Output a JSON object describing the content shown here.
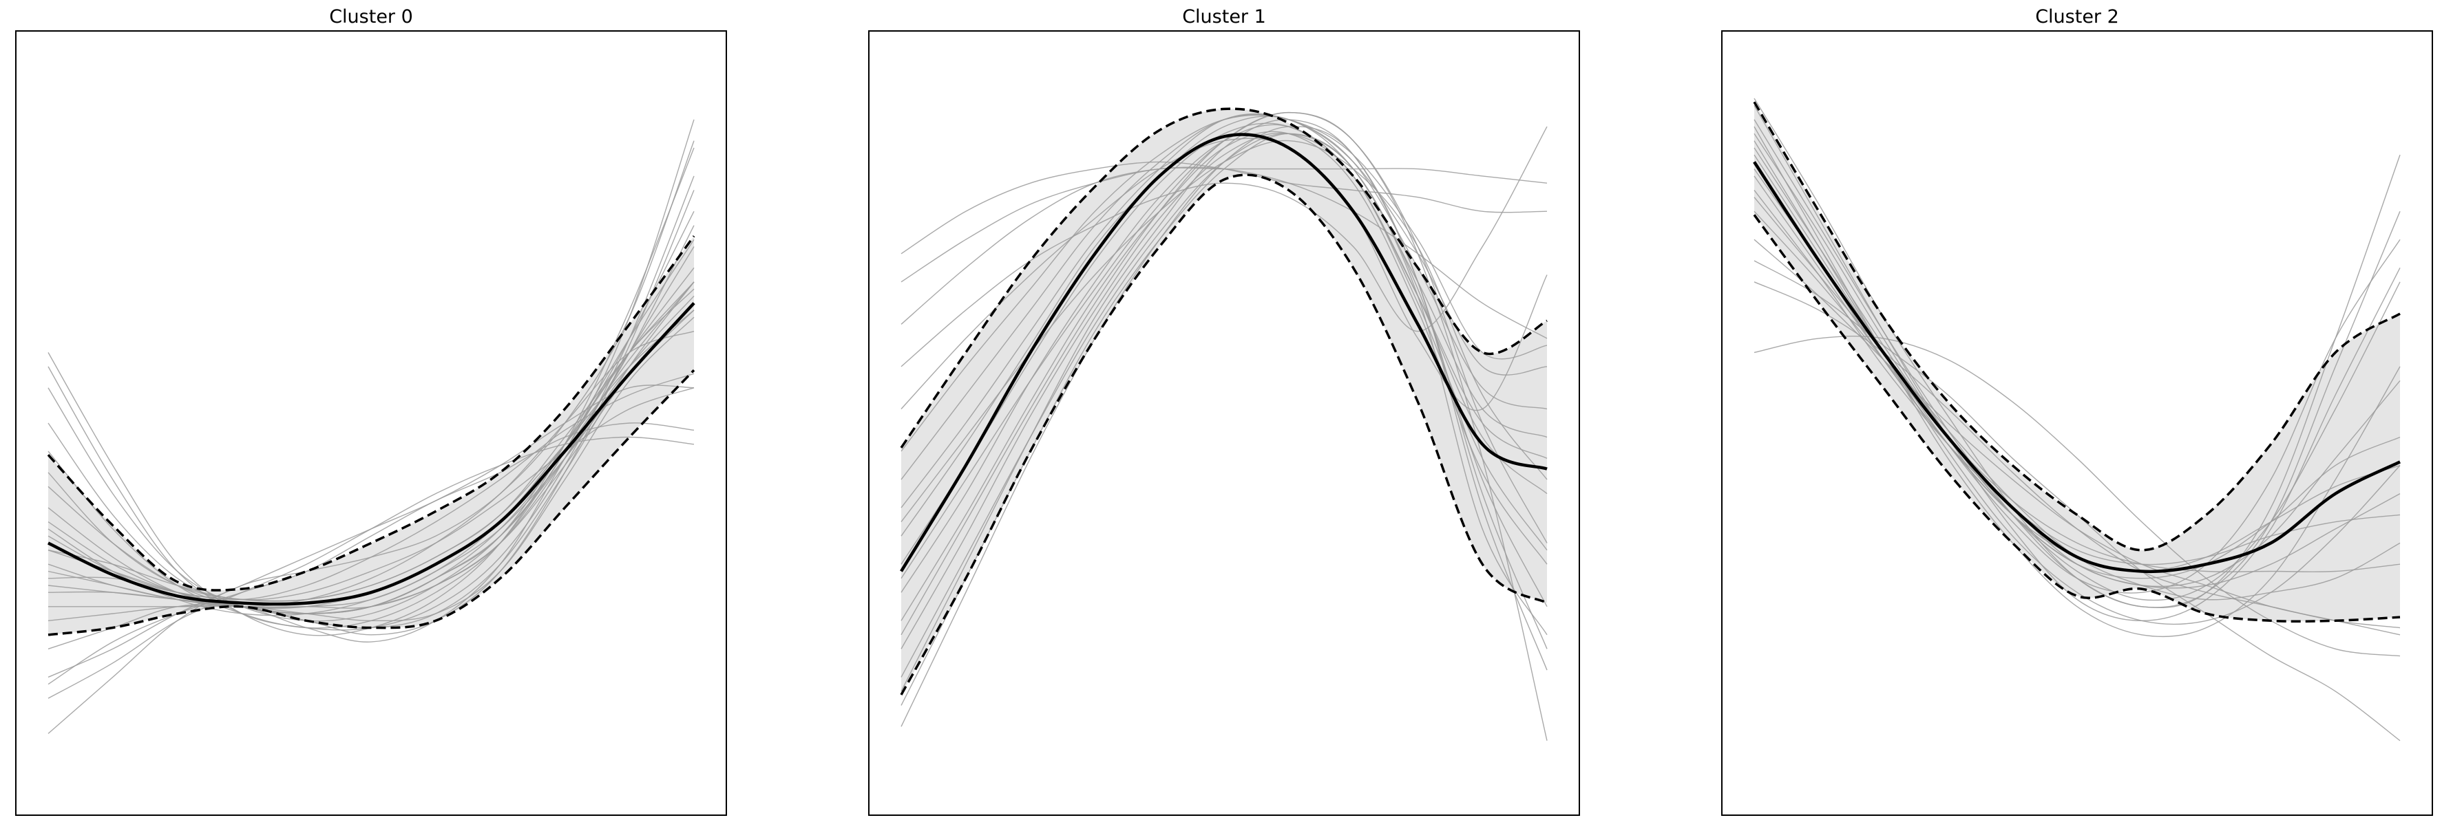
{
  "figure": {
    "panel_titles": [
      "Cluster 0",
      "Cluster 1",
      "Cluster 2"
    ],
    "colors": {
      "sample_curve": "#9a9a9a",
      "band_fill": "#e5e5e5",
      "mean_line": "#000000",
      "bound_line": "#000000",
      "frame": "#000000"
    }
  },
  "chart_data": [
    {
      "type": "line",
      "title": "Cluster 0",
      "xlabel": "",
      "ylabel": "",
      "xticks": [],
      "yticks": [],
      "grid": false,
      "legend": "none",
      "xlim": [
        0,
        1
      ],
      "ylim": [
        0,
        1
      ],
      "x": [
        0,
        0.1,
        0.2,
        0.3,
        0.4,
        0.5,
        0.6,
        0.7,
        0.8,
        0.9,
        1.0
      ],
      "mean": [
        0.33,
        0.285,
        0.255,
        0.245,
        0.245,
        0.26,
        0.3,
        0.36,
        0.46,
        0.57,
        0.67
      ],
      "upper": [
        0.455,
        0.355,
        0.275,
        0.265,
        0.29,
        0.33,
        0.375,
        0.43,
        0.52,
        0.64,
        0.765
      ],
      "lower": [
        0.2,
        0.21,
        0.23,
        0.24,
        0.22,
        0.21,
        0.22,
        0.28,
        0.38,
        0.48,
        0.575
      ],
      "samples": [
        [
          0.06,
          0.14,
          0.22,
          0.27,
          0.29,
          0.31,
          0.34,
          0.4,
          0.5,
          0.65,
          0.9
        ],
        [
          0.11,
          0.16,
          0.22,
          0.26,
          0.3,
          0.35,
          0.4,
          0.44,
          0.47,
          0.48,
          0.47
        ],
        [
          0.13,
          0.19,
          0.23,
          0.26,
          0.29,
          0.34,
          0.39,
          0.43,
          0.48,
          0.5,
          0.49
        ],
        [
          0.14,
          0.18,
          0.23,
          0.27,
          0.31,
          0.35,
          0.39,
          0.44,
          0.5,
          0.55,
          0.55
        ],
        [
          0.18,
          0.21,
          0.24,
          0.24,
          0.21,
          0.19,
          0.22,
          0.3,
          0.45,
          0.6,
          0.78
        ],
        [
          0.22,
          0.23,
          0.24,
          0.24,
          0.22,
          0.21,
          0.23,
          0.3,
          0.43,
          0.58,
          0.7
        ],
        [
          0.24,
          0.24,
          0.24,
          0.24,
          0.23,
          0.22,
          0.23,
          0.29,
          0.42,
          0.56,
          0.65
        ],
        [
          0.27,
          0.26,
          0.25,
          0.24,
          0.24,
          0.24,
          0.27,
          0.33,
          0.44,
          0.57,
          0.67
        ],
        [
          0.3,
          0.27,
          0.25,
          0.24,
          0.24,
          0.25,
          0.29,
          0.35,
          0.45,
          0.57,
          0.66
        ],
        [
          0.32,
          0.29,
          0.26,
          0.24,
          0.23,
          0.24,
          0.28,
          0.34,
          0.45,
          0.58,
          0.68
        ],
        [
          0.34,
          0.29,
          0.26,
          0.25,
          0.25,
          0.27,
          0.31,
          0.37,
          0.47,
          0.58,
          0.66
        ],
        [
          0.36,
          0.3,
          0.26,
          0.24,
          0.23,
          0.24,
          0.28,
          0.35,
          0.46,
          0.59,
          0.7
        ],
        [
          0.38,
          0.31,
          0.26,
          0.24,
          0.24,
          0.26,
          0.3,
          0.36,
          0.47,
          0.6,
          0.72
        ],
        [
          0.41,
          0.33,
          0.27,
          0.24,
          0.23,
          0.24,
          0.27,
          0.33,
          0.45,
          0.6,
          0.75
        ],
        [
          0.43,
          0.33,
          0.27,
          0.25,
          0.25,
          0.27,
          0.31,
          0.37,
          0.48,
          0.6,
          0.7
        ],
        [
          0.46,
          0.35,
          0.27,
          0.23,
          0.21,
          0.22,
          0.26,
          0.33,
          0.46,
          0.62,
          0.8
        ],
        [
          0.5,
          0.37,
          0.28,
          0.24,
          0.23,
          0.24,
          0.28,
          0.34,
          0.47,
          0.62,
          0.76
        ],
        [
          0.55,
          0.4,
          0.29,
          0.24,
          0.22,
          0.23,
          0.27,
          0.34,
          0.46,
          0.65,
          0.93
        ],
        [
          0.58,
          0.42,
          0.29,
          0.23,
          0.21,
          0.21,
          0.24,
          0.31,
          0.44,
          0.62,
          0.85
        ],
        [
          0.6,
          0.44,
          0.3,
          0.23,
          0.2,
          0.21,
          0.25,
          0.33,
          0.47,
          0.66,
          0.89
        ],
        [
          0.32,
          0.3,
          0.27,
          0.25,
          0.26,
          0.29,
          0.33,
          0.39,
          0.46,
          0.52,
          0.55
        ],
        [
          0.28,
          0.28,
          0.26,
          0.25,
          0.27,
          0.31,
          0.36,
          0.42,
          0.49,
          0.54,
          0.57
        ],
        [
          0.26,
          0.26,
          0.25,
          0.24,
          0.22,
          0.2,
          0.22,
          0.29,
          0.43,
          0.61,
          0.83
        ],
        [
          0.35,
          0.29,
          0.25,
          0.23,
          0.23,
          0.25,
          0.29,
          0.36,
          0.47,
          0.6,
          0.69
        ],
        [
          0.29,
          0.27,
          0.25,
          0.24,
          0.25,
          0.28,
          0.33,
          0.4,
          0.5,
          0.6,
          0.63
        ]
      ]
    },
    {
      "type": "line",
      "title": "Cluster 1",
      "xlabel": "",
      "ylabel": "",
      "xticks": [],
      "yticks": [],
      "grid": false,
      "legend": "none",
      "xlim": [
        0,
        1
      ],
      "ylim": [
        0,
        1
      ],
      "x": [
        0,
        0.1,
        0.2,
        0.3,
        0.4,
        0.5,
        0.6,
        0.7,
        0.8,
        0.9,
        1.0
      ],
      "mean": [
        0.29,
        0.44,
        0.6,
        0.74,
        0.85,
        0.906,
        0.89,
        0.8,
        0.64,
        0.47,
        0.435
      ],
      "upper": [
        0.465,
        0.6,
        0.73,
        0.835,
        0.915,
        0.945,
        0.925,
        0.85,
        0.72,
        0.6,
        0.645
      ],
      "lower": [
        0.115,
        0.28,
        0.46,
        0.62,
        0.75,
        0.845,
        0.83,
        0.72,
        0.53,
        0.3,
        0.245
      ],
      "samples": [
        [
          0.07,
          0.26,
          0.45,
          0.62,
          0.76,
          0.87,
          0.92,
          0.88,
          0.7,
          0.38,
          0.15
        ],
        [
          0.1,
          0.28,
          0.46,
          0.63,
          0.76,
          0.86,
          0.91,
          0.86,
          0.68,
          0.35,
          0.2
        ],
        [
          0.14,
          0.31,
          0.48,
          0.64,
          0.77,
          0.87,
          0.91,
          0.86,
          0.69,
          0.42,
          0.24
        ],
        [
          0.18,
          0.34,
          0.51,
          0.66,
          0.79,
          0.88,
          0.91,
          0.85,
          0.67,
          0.45,
          0.32
        ],
        [
          0.22,
          0.37,
          0.53,
          0.68,
          0.8,
          0.89,
          0.91,
          0.84,
          0.66,
          0.43,
          0.3
        ],
        [
          0.26,
          0.4,
          0.56,
          0.7,
          0.82,
          0.9,
          0.92,
          0.85,
          0.68,
          0.48,
          0.4
        ],
        [
          0.3,
          0.44,
          0.59,
          0.73,
          0.84,
          0.91,
          0.92,
          0.85,
          0.68,
          0.5,
          0.45
        ],
        [
          0.34,
          0.47,
          0.61,
          0.75,
          0.85,
          0.92,
          0.93,
          0.86,
          0.7,
          0.52,
          0.48
        ],
        [
          0.38,
          0.5,
          0.63,
          0.76,
          0.86,
          0.93,
          0.93,
          0.87,
          0.72,
          0.55,
          0.52
        ],
        [
          0.42,
          0.54,
          0.66,
          0.78,
          0.87,
          0.93,
          0.93,
          0.87,
          0.74,
          0.58,
          0.58
        ],
        [
          0.46,
          0.58,
          0.69,
          0.8,
          0.88,
          0.93,
          0.93,
          0.88,
          0.76,
          0.6,
          0.61
        ],
        [
          0.64,
          0.72,
          0.79,
          0.84,
          0.86,
          0.86,
          0.84,
          0.8,
          0.74,
          0.67,
          0.62
        ],
        [
          0.7,
          0.76,
          0.81,
          0.84,
          0.86,
          0.86,
          0.86,
          0.86,
          0.86,
          0.85,
          0.84
        ],
        [
          0.74,
          0.8,
          0.84,
          0.86,
          0.87,
          0.86,
          0.84,
          0.83,
          0.82,
          0.8,
          0.8
        ],
        [
          0.58,
          0.66,
          0.73,
          0.78,
          0.82,
          0.84,
          0.82,
          0.75,
          0.63,
          0.75,
          0.92
        ],
        [
          0.52,
          0.62,
          0.71,
          0.79,
          0.86,
          0.9,
          0.89,
          0.8,
          0.62,
          0.52,
          0.71
        ],
        [
          0.2,
          0.36,
          0.52,
          0.67,
          0.8,
          0.9,
          0.94,
          0.9,
          0.74,
          0.45,
          0.05
        ],
        [
          0.12,
          0.3,
          0.48,
          0.65,
          0.78,
          0.89,
          0.93,
          0.88,
          0.7,
          0.4,
          0.18
        ],
        [
          0.36,
          0.48,
          0.6,
          0.71,
          0.8,
          0.87,
          0.9,
          0.86,
          0.75,
          0.54,
          0.42
        ],
        [
          0.28,
          0.42,
          0.56,
          0.69,
          0.81,
          0.9,
          0.94,
          0.9,
          0.75,
          0.5,
          0.33
        ]
      ]
    },
    {
      "type": "line",
      "title": "Cluster 2",
      "xlabel": "",
      "ylabel": "",
      "xticks": [],
      "yticks": [],
      "grid": false,
      "legend": "none",
      "xlim": [
        0,
        1
      ],
      "ylim": [
        0,
        1
      ],
      "x": [
        0,
        0.1,
        0.2,
        0.3,
        0.4,
        0.5,
        0.6,
        0.7,
        0.8,
        0.9,
        1.0
      ],
      "mean": [
        0.87,
        0.73,
        0.6,
        0.48,
        0.38,
        0.31,
        0.29,
        0.3,
        0.33,
        0.4,
        0.445
      ],
      "upper": [
        0.955,
        0.8,
        0.65,
        0.53,
        0.44,
        0.37,
        0.32,
        0.37,
        0.47,
        0.6,
        0.655
      ],
      "lower": [
        0.795,
        0.67,
        0.55,
        0.43,
        0.33,
        0.255,
        0.265,
        0.23,
        0.22,
        0.22,
        0.225
      ],
      "samples": [
        [
          0.96,
          0.81,
          0.65,
          0.51,
          0.38,
          0.28,
          0.24,
          0.26,
          0.38,
          0.62,
          0.88
        ],
        [
          0.93,
          0.78,
          0.63,
          0.49,
          0.37,
          0.28,
          0.24,
          0.26,
          0.36,
          0.58,
          0.8
        ],
        [
          0.91,
          0.77,
          0.62,
          0.48,
          0.37,
          0.29,
          0.25,
          0.27,
          0.36,
          0.52,
          0.7
        ],
        [
          0.89,
          0.75,
          0.61,
          0.48,
          0.37,
          0.3,
          0.27,
          0.28,
          0.34,
          0.45,
          0.56
        ],
        [
          0.87,
          0.73,
          0.59,
          0.47,
          0.37,
          0.3,
          0.28,
          0.3,
          0.36,
          0.44,
          0.48
        ],
        [
          0.85,
          0.72,
          0.59,
          0.47,
          0.37,
          0.31,
          0.29,
          0.31,
          0.36,
          0.41,
          0.44
        ],
        [
          0.83,
          0.71,
          0.58,
          0.47,
          0.38,
          0.32,
          0.3,
          0.31,
          0.34,
          0.36,
          0.37
        ],
        [
          0.8,
          0.7,
          0.59,
          0.48,
          0.39,
          0.33,
          0.3,
          0.29,
          0.29,
          0.29,
          0.3
        ],
        [
          0.76,
          0.68,
          0.59,
          0.5,
          0.42,
          0.35,
          0.3,
          0.27,
          0.24,
          0.22,
          0.2
        ],
        [
          0.73,
          0.68,
          0.61,
          0.54,
          0.45,
          0.37,
          0.29,
          0.23,
          0.17,
          0.12,
          0.05
        ],
        [
          0.7,
          0.66,
          0.6,
          0.52,
          0.43,
          0.35,
          0.29,
          0.26,
          0.24,
          0.22,
          0.21
        ],
        [
          0.6,
          0.62,
          0.62,
          0.59,
          0.53,
          0.45,
          0.36,
          0.28,
          0.22,
          0.18,
          0.17
        ],
        [
          0.95,
          0.79,
          0.63,
          0.48,
          0.35,
          0.25,
          0.22,
          0.25,
          0.35,
          0.54,
          0.72
        ],
        [
          0.9,
          0.75,
          0.6,
          0.46,
          0.34,
          0.26,
          0.22,
          0.22,
          0.26,
          0.34,
          0.44
        ],
        [
          0.88,
          0.74,
          0.6,
          0.47,
          0.36,
          0.28,
          0.26,
          0.3,
          0.42,
          0.62,
          0.76
        ],
        [
          0.86,
          0.73,
          0.6,
          0.48,
          0.38,
          0.3,
          0.27,
          0.27,
          0.3,
          0.35,
          0.4
        ],
        [
          0.82,
          0.71,
          0.6,
          0.49,
          0.39,
          0.31,
          0.27,
          0.25,
          0.26,
          0.28,
          0.33
        ],
        [
          0.92,
          0.76,
          0.6,
          0.45,
          0.33,
          0.24,
          0.2,
          0.21,
          0.28,
          0.42,
          0.58
        ]
      ]
    }
  ]
}
